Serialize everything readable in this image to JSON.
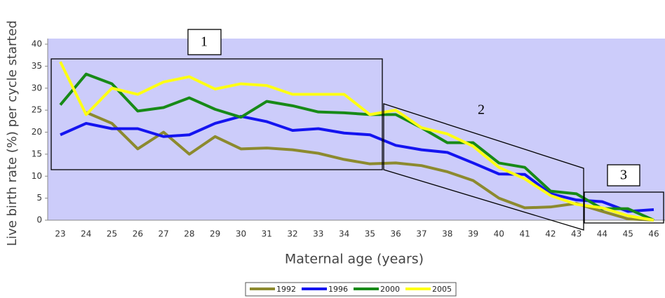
{
  "chart_data": {
    "type": "line",
    "y_label": "Live birth rate (%) per cycle started",
    "x_label": "Maternal age (years)",
    "categories": [
      23,
      24,
      25,
      26,
      27,
      28,
      29,
      30,
      31,
      32,
      33,
      34,
      35,
      36,
      37,
      38,
      39,
      40,
      41,
      42,
      43,
      44,
      45,
      46
    ],
    "ylim": [
      0,
      40
    ],
    "yticks": [
      0,
      5,
      10,
      15,
      20,
      25,
      30,
      35,
      40
    ],
    "background": "#ccccfa",
    "series": [
      {
        "name": "1992",
        "color": "#8c8a2e",
        "values": [
          null,
          24.5,
          22,
          16.2,
          20,
          15,
          19,
          16.2,
          16.4,
          16,
          15.2,
          13.8,
          12.8,
          13,
          12.4,
          11,
          9,
          5,
          2.8,
          3,
          3.8,
          2,
          0.3,
          0
        ]
      },
      {
        "name": "1996",
        "color": "#1414f0",
        "values": [
          19.4,
          22,
          20.8,
          20.8,
          19,
          19.4,
          22,
          23.6,
          22.4,
          20.4,
          20.8,
          19.8,
          19.4,
          17,
          16,
          15.4,
          13,
          10.5,
          10.4,
          6,
          4.6,
          4.2,
          2,
          2.4
        ]
      },
      {
        "name": "2000",
        "color": "#178a17",
        "values": [
          26.2,
          33.2,
          31,
          24.8,
          25.6,
          27.8,
          25.2,
          23.4,
          27,
          26,
          24.6,
          24.4,
          24,
          24,
          21,
          17.6,
          17.6,
          13,
          12,
          6.6,
          6,
          2.6,
          2.6,
          0
        ]
      },
      {
        "name": "2005",
        "color": "#ffff14",
        "values": [
          36,
          24,
          30,
          28.6,
          31.4,
          32.6,
          29.8,
          31,
          30.6,
          28.6,
          28.6,
          28.6,
          24,
          25,
          21,
          19.6,
          16.8,
          12,
          9.4,
          5.6,
          3.6,
          2.8,
          1,
          0
        ]
      }
    ],
    "annotations": [
      "1",
      "2",
      "3"
    ]
  }
}
